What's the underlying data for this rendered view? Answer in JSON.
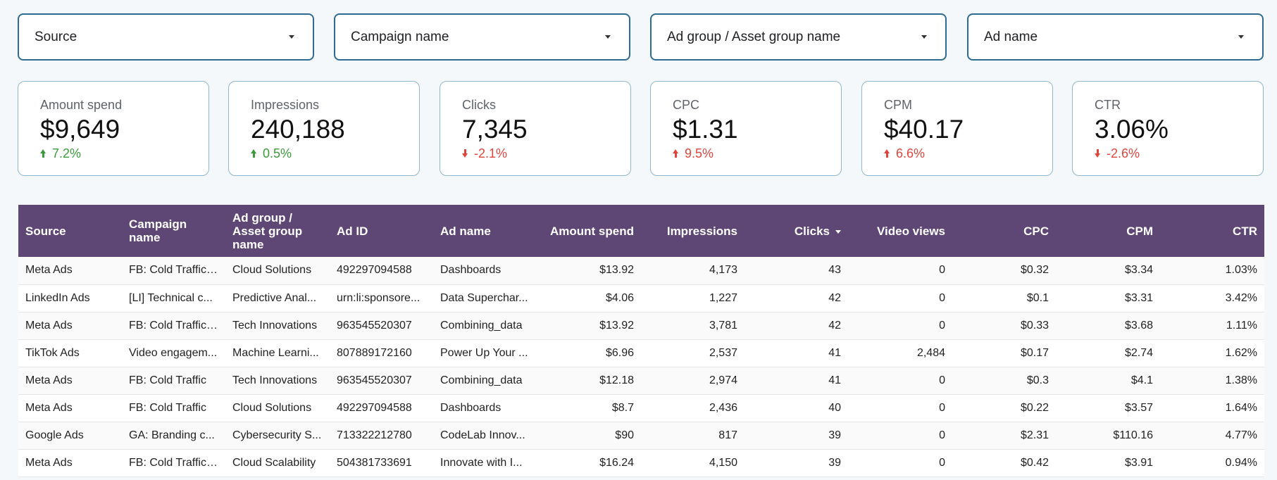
{
  "filters": [
    {
      "label": "Source"
    },
    {
      "label": "Campaign name"
    },
    {
      "label": "Ad group / Asset group name"
    },
    {
      "label": "Ad name"
    }
  ],
  "kpis": [
    {
      "label": "Amount spend",
      "value": "$9,649",
      "delta": "7.2%",
      "direction": "up"
    },
    {
      "label": "Impressions",
      "value": "240,188",
      "delta": "0.5%",
      "direction": "up"
    },
    {
      "label": "Clicks",
      "value": "7,345",
      "delta": "-2.1%",
      "direction": "down"
    },
    {
      "label": "CPC",
      "value": "$1.31",
      "delta": "9.5%",
      "direction": "up-bad"
    },
    {
      "label": "CPM",
      "value": "$40.17",
      "delta": "6.6%",
      "direction": "up-bad"
    },
    {
      "label": "CTR",
      "value": "3.06%",
      "delta": "-2.6%",
      "direction": "down"
    }
  ],
  "colors": {
    "header_bg": "#5e4675",
    "filter_border": "#2e6b93",
    "positive": "#3c9a3c",
    "negative": "#e0453c"
  },
  "table": {
    "columns": [
      "Source",
      "Campaign name",
      "Ad group / Asset group name",
      "Ad ID",
      "Ad name",
      "Amount spend",
      "Impressions",
      "Clicks",
      "Video views",
      "CPC",
      "CPM",
      "CTR"
    ],
    "sorted_column": "Clicks",
    "rows": [
      [
        "Meta Ads",
        "FB: Cold Traffic ...",
        "Cloud Solutions",
        "492297094588",
        "Dashboards",
        "$13.92",
        "4,173",
        "43",
        "0",
        "$0.32",
        "$3.34",
        "1.03%"
      ],
      [
        "LinkedIn Ads",
        "[LI] Technical c...",
        "Predictive Anal...",
        "urn:li:sponsore...",
        "Data Superchar...",
        "$4.06",
        "1,227",
        "42",
        "0",
        "$0.1",
        "$3.31",
        "3.42%"
      ],
      [
        "Meta Ads",
        "FB: Cold Traffic ...",
        "Tech Innovations",
        "963545520307",
        "Combining_data",
        "$13.92",
        "3,781",
        "42",
        "0",
        "$0.33",
        "$3.68",
        "1.11%"
      ],
      [
        "TikTok Ads",
        "Video engagem...",
        "Machine Learni...",
        "807889172160",
        "Power Up Your ...",
        "$6.96",
        "2,537",
        "41",
        "2,484",
        "$0.17",
        "$2.74",
        "1.62%"
      ],
      [
        "Meta Ads",
        "FB: Cold Traffic",
        "Tech Innovations",
        "963545520307",
        "Combining_data",
        "$12.18",
        "2,974",
        "41",
        "0",
        "$0.3",
        "$4.1",
        "1.38%"
      ],
      [
        "Meta Ads",
        "FB: Cold Traffic",
        "Cloud Solutions",
        "492297094588",
        "Dashboards",
        "$8.7",
        "2,436",
        "40",
        "0",
        "$0.22",
        "$3.57",
        "1.64%"
      ],
      [
        "Google Ads",
        "GA: Branding c...",
        "Cybersecurity S...",
        "713322212780",
        "CodeLab Innov...",
        "$90",
        "817",
        "39",
        "0",
        "$2.31",
        "$110.16",
        "4.77%"
      ],
      [
        "Meta Ads",
        "FB: Cold Traffic ...",
        "Cloud Scalability",
        "504381733691",
        "Innovate with I...",
        "$16.24",
        "4,150",
        "39",
        "0",
        "$0.42",
        "$3.91",
        "0.94%"
      ]
    ]
  }
}
